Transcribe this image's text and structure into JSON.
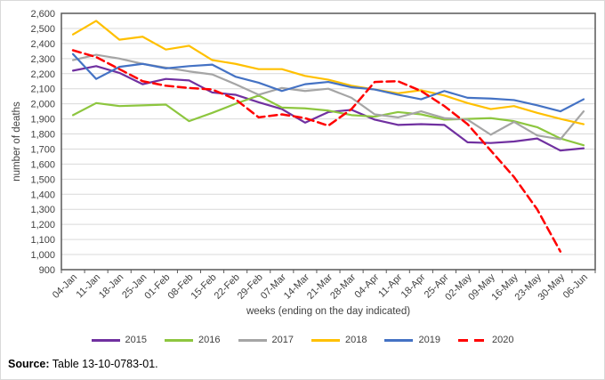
{
  "source": {
    "prefix": "Source:",
    "text": " Table 13-10-0783-01."
  },
  "chart_data": {
    "type": "line",
    "title": "",
    "xlabel": "weeks (ending on the day indicated)",
    "ylabel": "number of deaths",
    "ylim": [
      900,
      2600
    ],
    "ytick_step": 100,
    "grid": true,
    "legend_position": "bottom",
    "axis_color": "#595959",
    "grid_color": "#d9d9d9",
    "text_color": "#404040",
    "categories": [
      "04-Jan",
      "11-Jan",
      "18-Jan",
      "25-Jan",
      "01-Feb",
      "08-Feb",
      "15-Feb",
      "22-Feb",
      "29-Feb",
      "07-Mar",
      "14-Mar",
      "21-Mar",
      "28-Mar",
      "04-Apr",
      "11-Apr",
      "18-Apr",
      "25-Apr",
      "02-May",
      "09-May",
      "16-May",
      "23-May",
      "30-May",
      "06-Jun"
    ],
    "series": [
      {
        "name": "2015",
        "color": "#7030A0",
        "dashed": false,
        "values": [
          2220,
          2250,
          2205,
          2130,
          2165,
          2155,
          2075,
          2060,
          2010,
          1965,
          1875,
          1945,
          1960,
          1895,
          1860,
          1865,
          1860,
          1745,
          1740,
          1750,
          1770,
          1690,
          1705
        ]
      },
      {
        "name": "2016",
        "color": "#8DC63F",
        "dashed": false,
        "values": [
          1925,
          2005,
          1985,
          1990,
          1995,
          1885,
          1940,
          2000,
          2055,
          1975,
          1970,
          1955,
          1925,
          1915,
          1945,
          1930,
          1895,
          1900,
          1905,
          1885,
          1845,
          1770,
          1725
        ]
      },
      {
        "name": "2017",
        "color": "#A5A5A5",
        "dashed": false,
        "values": [
          2290,
          2325,
          2300,
          2265,
          2240,
          2215,
          2195,
          2130,
          2060,
          2105,
          2085,
          2100,
          2040,
          1930,
          1910,
          1950,
          1905,
          1895,
          1795,
          1880,
          1790,
          1765,
          1950
        ]
      },
      {
        "name": "2018",
        "color": "#FFC000",
        "dashed": false,
        "values": [
          2460,
          2550,
          2425,
          2445,
          2360,
          2385,
          2290,
          2265,
          2230,
          2230,
          2185,
          2160,
          2120,
          2095,
          2070,
          2090,
          2055,
          2005,
          1965,
          1985,
          1940,
          1900,
          1865
        ]
      },
      {
        "name": "2019",
        "color": "#4472C4",
        "dashed": false,
        "values": [
          2330,
          2165,
          2245,
          2265,
          2235,
          2250,
          2260,
          2180,
          2140,
          2085,
          2130,
          2145,
          2110,
          2095,
          2060,
          2030,
          2085,
          2040,
          2035,
          2025,
          1990,
          1950,
          2030
        ]
      },
      {
        "name": "2020",
        "color": "#FF0000",
        "dashed": true,
        "values": [
          2355,
          2310,
          2230,
          2150,
          2120,
          2105,
          2095,
          2030,
          1910,
          1930,
          1905,
          1855,
          1965,
          2145,
          2150,
          2085,
          1985,
          1865,
          1690,
          1515,
          1300,
          1020
        ]
      }
    ]
  }
}
